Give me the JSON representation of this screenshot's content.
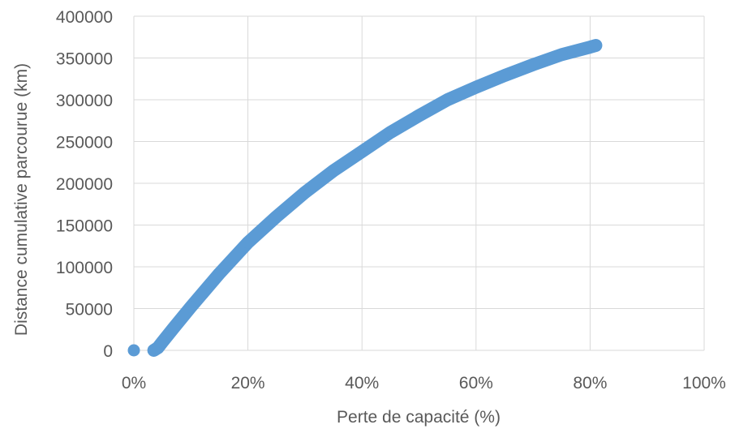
{
  "chart_data": {
    "type": "scatter",
    "title": "",
    "xlabel": "Perte de capacité (%)",
    "ylabel": "Distance cumulative parcourue (km)",
    "xlim": [
      0,
      100
    ],
    "ylim": [
      0,
      400000
    ],
    "x_ticks": [
      "0%",
      "20%",
      "40%",
      "60%",
      "80%",
      "100%"
    ],
    "y_ticks": [
      "0",
      "50000",
      "100000",
      "150000",
      "200000",
      "250000",
      "300000",
      "350000",
      "400000"
    ],
    "grid": true,
    "legend": "none",
    "colors": {
      "series": "#5b9bd5",
      "grid": "#d9d9d9",
      "text": "#595959"
    },
    "series": [
      {
        "values": [
          [
            0,
            0
          ],
          [
            3.5,
            0
          ],
          [
            4.2,
            3000
          ],
          [
            5,
            10000
          ],
          [
            7,
            27000
          ],
          [
            10,
            52000
          ],
          [
            15,
            92000
          ],
          [
            20,
            129000
          ],
          [
            25,
            160000
          ],
          [
            30,
            189000
          ],
          [
            35,
            215000
          ],
          [
            40,
            238000
          ],
          [
            45,
            261000
          ],
          [
            50,
            281000
          ],
          [
            55,
            300000
          ],
          [
            60,
            315000
          ],
          [
            65,
            329000
          ],
          [
            70,
            342000
          ],
          [
            75,
            354000
          ],
          [
            80,
            363000
          ],
          [
            81,
            365000
          ]
        ]
      }
    ]
  }
}
